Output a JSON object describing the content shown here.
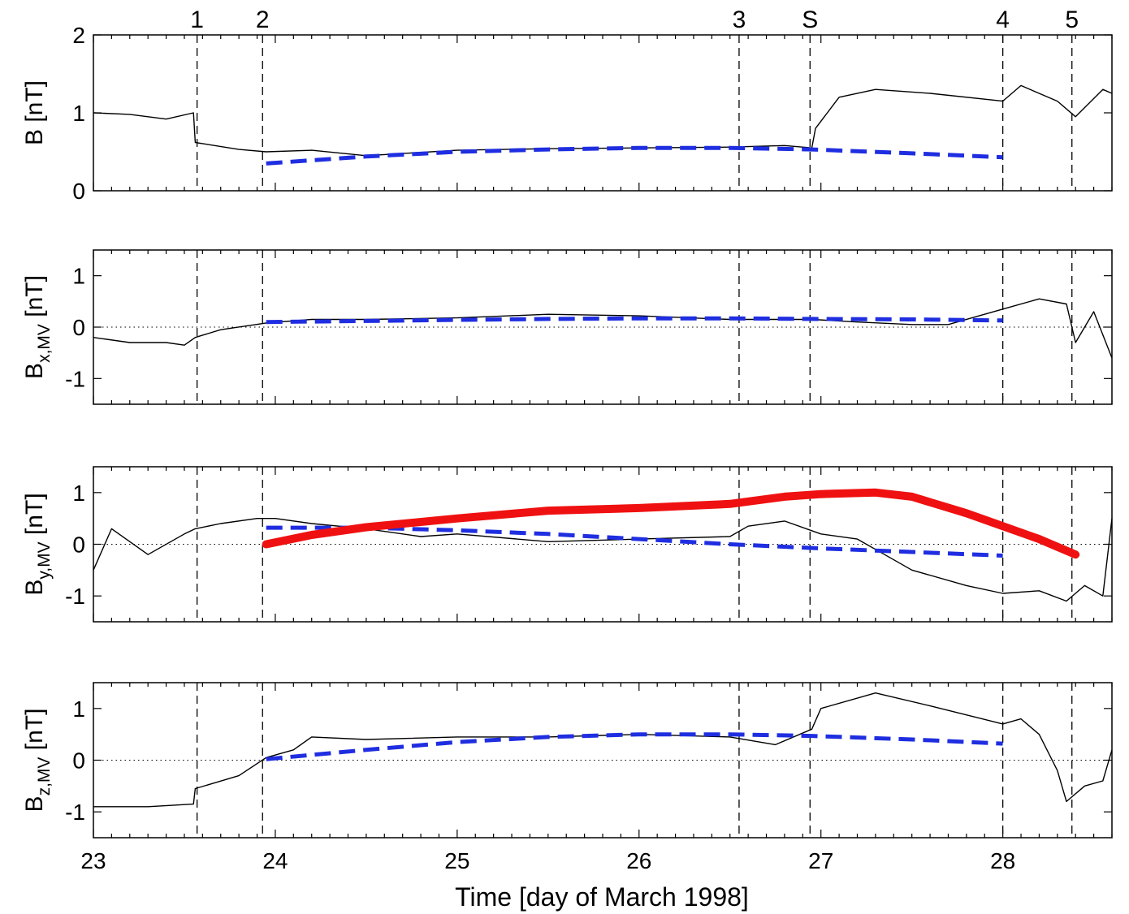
{
  "chart_data": [
    {
      "type": "line",
      "ylabel": "B [nT]",
      "ylabel_main": "B [nT]",
      "ylabel_sub": "",
      "ylabel_suffix": "",
      "ylim": [
        0,
        2
      ],
      "yticks": [
        0,
        1,
        2
      ],
      "zero_line": false,
      "series": [
        {
          "color": "#000000",
          "style": "data",
          "x": [
            23.0,
            23.2,
            23.4,
            23.55,
            23.56,
            23.8,
            23.95,
            24.2,
            24.5,
            25.0,
            25.5,
            26.0,
            26.5,
            26.8,
            26.95,
            26.97,
            27.1,
            27.3,
            27.6,
            28.0,
            28.1,
            28.3,
            28.4,
            28.55,
            28.6
          ],
          "y": [
            1.0,
            0.98,
            0.92,
            1.0,
            0.62,
            0.53,
            0.5,
            0.52,
            0.45,
            0.52,
            0.54,
            0.55,
            0.56,
            0.58,
            0.55,
            0.8,
            1.2,
            1.3,
            1.25,
            1.15,
            1.35,
            1.15,
            0.95,
            1.3,
            1.25
          ]
        },
        {
          "color": "#1f2ee0",
          "style": "fit",
          "x": [
            23.95,
            24.5,
            25.0,
            25.5,
            26.0,
            26.5,
            26.95,
            27.5,
            28.0
          ],
          "y": [
            0.35,
            0.44,
            0.5,
            0.53,
            0.55,
            0.55,
            0.53,
            0.48,
            0.43
          ]
        }
      ]
    },
    {
      "type": "line",
      "ylabel": "B x,MV [nT]",
      "ylabel_main": "B",
      "ylabel_sub": "x,MV",
      "ylabel_suffix": "[nT]",
      "ylim": [
        -1.5,
        1.5
      ],
      "yticks": [
        -1,
        0,
        1
      ],
      "zero_line": true,
      "series": [
        {
          "color": "#000000",
          "style": "data",
          "x": [
            23.0,
            23.2,
            23.4,
            23.5,
            23.56,
            23.7,
            23.95,
            24.2,
            24.5,
            25.0,
            25.5,
            26.0,
            26.5,
            26.95,
            27.2,
            27.5,
            27.7,
            28.0,
            28.2,
            28.35,
            28.4,
            28.5,
            28.6
          ],
          "y": [
            -0.2,
            -0.3,
            -0.3,
            -0.35,
            -0.2,
            -0.05,
            0.08,
            0.15,
            0.15,
            0.18,
            0.25,
            0.22,
            0.15,
            0.15,
            0.1,
            0.05,
            0.05,
            0.35,
            0.55,
            0.45,
            -0.3,
            0.3,
            -0.6
          ]
        },
        {
          "color": "#1f2ee0",
          "style": "fit",
          "x": [
            23.95,
            24.5,
            25.0,
            25.5,
            26.0,
            26.5,
            26.95,
            27.5,
            28.0
          ],
          "y": [
            0.1,
            0.12,
            0.14,
            0.16,
            0.17,
            0.17,
            0.16,
            0.15,
            0.13
          ]
        }
      ]
    },
    {
      "type": "line",
      "ylabel": "B y,MV [nT]",
      "ylabel_main": "B",
      "ylabel_sub": "y,MV",
      "ylabel_suffix": "[nT]",
      "ylim": [
        -1.5,
        1.5
      ],
      "yticks": [
        -1,
        0,
        1
      ],
      "zero_line": true,
      "series": [
        {
          "color": "#000000",
          "style": "data",
          "x": [
            23.0,
            23.1,
            23.3,
            23.5,
            23.56,
            23.7,
            23.9,
            24.0,
            24.2,
            24.5,
            24.8,
            25.0,
            25.5,
            26.0,
            26.5,
            26.6,
            26.8,
            27.0,
            27.2,
            27.35,
            27.5,
            27.8,
            28.0,
            28.2,
            28.35,
            28.45,
            28.55,
            28.6
          ],
          "y": [
            -0.5,
            0.3,
            -0.2,
            0.2,
            0.3,
            0.4,
            0.5,
            0.5,
            0.4,
            0.3,
            0.15,
            0.2,
            0.05,
            0.1,
            0.15,
            0.35,
            0.45,
            0.2,
            0.1,
            -0.2,
            -0.5,
            -0.8,
            -0.95,
            -0.9,
            -1.1,
            -0.8,
            -1.0,
            0.5
          ]
        },
        {
          "color": "#1f2ee0",
          "style": "fit",
          "x": [
            23.95,
            24.5,
            25.0,
            25.5,
            26.0,
            26.5,
            27.0,
            27.5,
            28.0
          ],
          "y": [
            0.32,
            0.32,
            0.27,
            0.2,
            0.1,
            0.0,
            -0.08,
            -0.15,
            -0.22
          ]
        },
        {
          "color": "#ef1111",
          "style": "model",
          "x": [
            23.95,
            24.2,
            24.5,
            25.0,
            25.5,
            26.0,
            26.5,
            26.8,
            27.0,
            27.3,
            27.5,
            27.8,
            28.0,
            28.2,
            28.4
          ],
          "y": [
            0.0,
            0.18,
            0.33,
            0.5,
            0.65,
            0.7,
            0.78,
            0.92,
            0.97,
            1.0,
            0.92,
            0.6,
            0.35,
            0.1,
            -0.2
          ]
        }
      ]
    },
    {
      "type": "line",
      "ylabel": "B z,MV [nT]",
      "ylabel_main": "B",
      "ylabel_sub": "z,MV",
      "ylabel_suffix": "[nT]",
      "ylim": [
        -1.5,
        1.5
      ],
      "yticks": [
        -1,
        0,
        1
      ],
      "zero_line": true,
      "series": [
        {
          "color": "#000000",
          "style": "data",
          "x": [
            23.0,
            23.3,
            23.55,
            23.56,
            23.8,
            23.95,
            24.1,
            24.2,
            24.5,
            25.0,
            25.5,
            26.0,
            26.5,
            26.75,
            26.95,
            27.0,
            27.3,
            27.6,
            28.0,
            28.1,
            28.2,
            28.3,
            28.35,
            28.45,
            28.55,
            28.6
          ],
          "y": [
            -0.9,
            -0.9,
            -0.85,
            -0.55,
            -0.3,
            0.05,
            0.2,
            0.45,
            0.4,
            0.45,
            0.45,
            0.5,
            0.45,
            0.3,
            0.6,
            1.0,
            1.3,
            1.05,
            0.7,
            0.8,
            0.5,
            -0.2,
            -0.8,
            -0.5,
            -0.4,
            0.2
          ]
        },
        {
          "color": "#1f2ee0",
          "style": "fit",
          "x": [
            23.95,
            24.5,
            25.0,
            25.5,
            26.0,
            26.5,
            26.95,
            27.5,
            28.0
          ],
          "y": [
            0.02,
            0.2,
            0.35,
            0.45,
            0.5,
            0.5,
            0.47,
            0.4,
            0.32
          ]
        }
      ]
    }
  ],
  "shared": {
    "xlim": [
      23,
      28.6
    ],
    "xticks": [
      23,
      24,
      25,
      26,
      27,
      28
    ],
    "xlabel": "Time [day of March  1998]",
    "boundaries": [
      {
        "label": "1",
        "x": 23.57
      },
      {
        "label": "2",
        "x": 23.93
      },
      {
        "label": "3",
        "x": 26.55
      },
      {
        "label": "S",
        "x": 26.94
      },
      {
        "label": "4",
        "x": 28.0
      },
      {
        "label": "5",
        "x": 28.38
      }
    ]
  }
}
